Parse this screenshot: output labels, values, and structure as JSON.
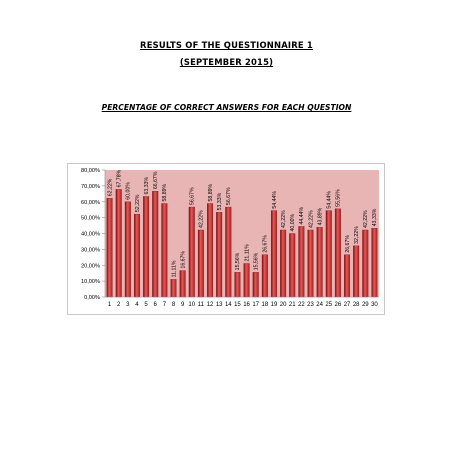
{
  "page": {
    "title": "RESULTS OF THE QUESTIONNAIRE 1",
    "date": "(SEPTEMBER 2015)",
    "subtitle": "PERCENTAGE OF CORRECT ANSWERS FOR EACH QUESTION"
  },
  "chart_data": {
    "type": "bar",
    "categories": [
      "1",
      "2",
      "3",
      "4",
      "5",
      "6",
      "7",
      "8",
      "9",
      "10",
      "11",
      "12",
      "13",
      "14",
      "15",
      "16",
      "17",
      "18",
      "19",
      "20",
      "21",
      "22",
      "23",
      "24",
      "25",
      "26",
      "27",
      "28",
      "29",
      "30"
    ],
    "values": [
      62.22,
      67.78,
      60.0,
      52.22,
      63.33,
      66.67,
      58.89,
      11.11,
      16.67,
      56.67,
      42.22,
      58.89,
      53.33,
      56.67,
      15.56,
      21.11,
      15.56,
      26.67,
      54.44,
      42.22,
      40.0,
      44.44,
      42.22,
      43.89,
      54.44,
      55.56,
      26.67,
      32.22,
      42.22,
      43.33
    ],
    "value_labels": [
      "62,22%",
      "67,78%",
      "60,00%",
      "52,22%",
      "63,33%",
      "66,67%",
      "58,89%",
      "11,11%",
      "16,67%",
      "56,67%",
      "42,22%",
      "58,89%",
      "53,33%",
      "56,67%",
      "15,56%",
      "21,11%",
      "15,56%",
      "26,67%",
      "54,44%",
      "42,22%",
      "40,00%",
      "44,44%",
      "42,22%",
      "43,89%",
      "54,44%",
      "55,56%",
      "26,67%",
      "32,22%",
      "42,22%",
      "43,33%"
    ],
    "y_ticks": [
      "0,00%",
      "10,00%",
      "20,00%",
      "30,00%",
      "40,00%",
      "50,00%",
      "60,00%",
      "70,00%",
      "80,00%"
    ],
    "ylim": [
      0,
      80
    ],
    "grid": false,
    "legend": false,
    "colors": {
      "plot_bg": "#e9b4b4",
      "bar": "#b01c1c",
      "bar_light": "#e55a5a",
      "bar_dark": "#7a0f0f",
      "axis": "#8c8c8c",
      "frame": "#c8c8c8"
    }
  }
}
